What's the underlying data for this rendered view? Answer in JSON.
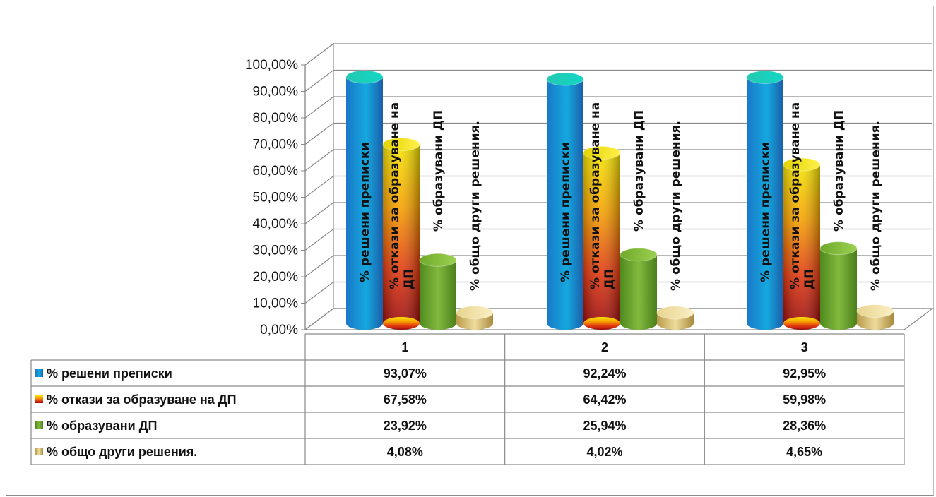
{
  "chart_data": {
    "type": "bar",
    "style": "3d-cylinder",
    "categories": [
      "1",
      "2",
      "3"
    ],
    "series": [
      {
        "name": "% решени преписки",
        "values": [
          93.07,
          92.24,
          92.95
        ],
        "display": [
          "93,07%",
          "92,24%",
          "92,95%"
        ],
        "color": "#1aa6d8"
      },
      {
        "name": "% откази за образуване на ДП",
        "values": [
          67.58,
          64.42,
          59.98
        ],
        "display": [
          "67,58%",
          "64,42%",
          "59,98%"
        ],
        "color": "#e53b12"
      },
      {
        "name": "% образувани ДП",
        "values": [
          23.92,
          25.94,
          28.36
        ],
        "display": [
          "23,92%",
          "25,94%",
          "28,36%"
        ],
        "color": "#6ea832"
      },
      {
        "name": "% общо други решения.",
        "values": [
          4.08,
          4.02,
          4.65
        ],
        "display": [
          "4,08%",
          "4,02%",
          "4,65%"
        ],
        "color": "#d8c27a"
      }
    ],
    "yticks": [
      "0,00%",
      "10,00%",
      "20,00%",
      "30,00%",
      "40,00%",
      "50,00%",
      "60,00%",
      "70,00%",
      "80,00%",
      "90,00%",
      "100,00%"
    ],
    "ylim": [
      0,
      100
    ],
    "grid": true,
    "legend": "data-table"
  }
}
